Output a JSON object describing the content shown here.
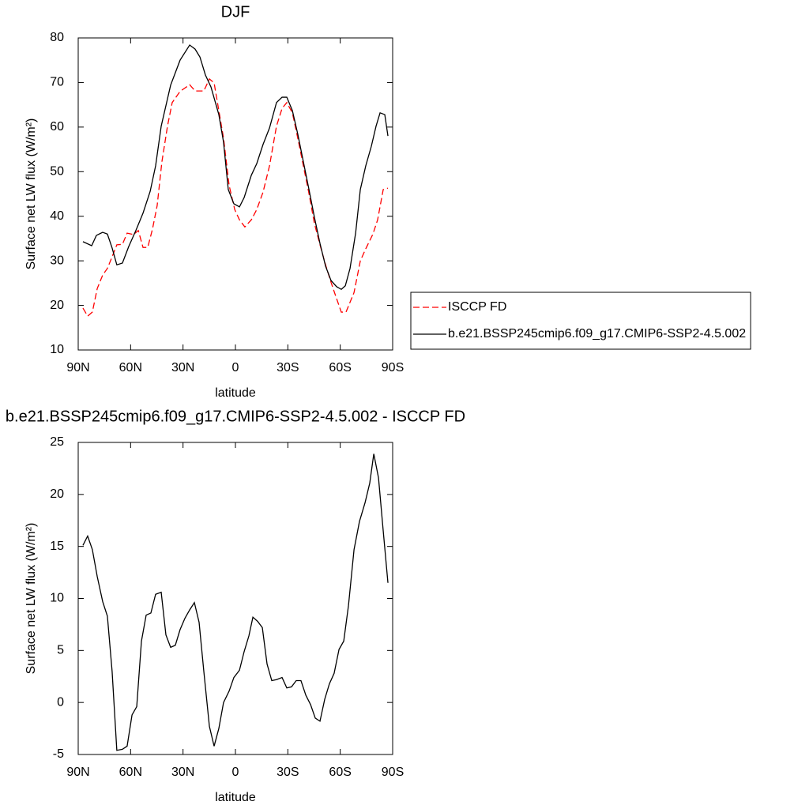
{
  "chart_data": [
    {
      "type": "line",
      "title": "DJF",
      "xlabel": "latitude",
      "ylabel": "Surface net LW flux (W/m²)",
      "xlim": [
        90,
        -90
      ],
      "ylim": [
        10,
        80
      ],
      "xticks": [
        {
          "value": 90,
          "label": "90N"
        },
        {
          "value": 60,
          "label": "60N"
        },
        {
          "value": 30,
          "label": "30N"
        },
        0,
        {
          "value": -30,
          "label": "30S"
        },
        {
          "value": -60,
          "label": "60S"
        },
        {
          "value": -90,
          "label": "90S"
        }
      ],
      "yticks": [
        10,
        20,
        30,
        40,
        50,
        60,
        70,
        80
      ],
      "legend": "right",
      "series": [
        {
          "name": "ISCCP FD",
          "color": "#ff0000",
          "style": "dashed",
          "x": [
            87.3,
            84.6,
            81.9,
            79.1,
            76,
            73.3,
            70.6,
            67.9,
            64.7,
            62,
            58.3,
            55.6,
            52.9,
            50.2,
            47.5,
            44.8,
            42.1,
            38.9,
            36.2,
            31.7,
            26.2,
            23.1,
            18.1,
            14.9,
            12.2,
            9.5,
            6.8,
            3.6,
            0.4,
            -2.3,
            -5.4,
            -9.1,
            -12.2,
            -15.8,
            -19.5,
            -23.5,
            -26.7,
            -29.4,
            -32.6,
            -35.7,
            -38.9,
            -42.1,
            -45.2,
            -48.4,
            -51.6,
            -54.7,
            -57.4,
            -60.6,
            -63.3,
            -67.9,
            -71.5,
            -74.6,
            -78.7,
            -81.4,
            -84.6,
            -87.3
          ],
          "values": [
            19.4,
            17.6,
            18.5,
            23.8,
            26.8,
            28.3,
            30.9,
            33.6,
            33.7,
            36.2,
            35.9,
            36.8,
            33,
            33,
            37.1,
            42.4,
            52.2,
            60.2,
            65.5,
            68,
            69.5,
            68.1,
            68.1,
            70.8,
            69.9,
            63.7,
            57.5,
            46.9,
            41.5,
            39.2,
            37.6,
            39.2,
            41.5,
            45.4,
            51.3,
            60.2,
            64.2,
            65.5,
            63.2,
            57.5,
            51.3,
            45.1,
            38.4,
            33.6,
            29.1,
            25.2,
            22.1,
            18.5,
            18.5,
            22.9,
            30,
            32.7,
            36,
            39.2,
            46,
            46.3
          ]
        },
        {
          "name": "b.e21.BSSP245cmip6.f09_g17.CMIP6-SSP2-4.5.002",
          "color": "#000000",
          "style": "solid",
          "x": [
            87.3,
            82.3,
            79.6,
            76,
            73.3,
            70.6,
            67.9,
            64.7,
            61.1,
            57,
            52.9,
            48.8,
            45.7,
            42.5,
            37.1,
            31.7,
            26.2,
            23.1,
            20.3,
            17.2,
            14,
            9.5,
            6.8,
            4.1,
            0.9,
            -2.3,
            -5,
            -9.1,
            -12.2,
            -15.8,
            -19.5,
            -23.5,
            -26.7,
            -29.4,
            -32.6,
            -35.7,
            -38.9,
            -42.1,
            -45.2,
            -48.4,
            -51.6,
            -54.7,
            -57.9,
            -60.6,
            -62.9,
            -65.6,
            -68.8,
            -71.5,
            -74.6,
            -77.8,
            -80.5,
            -82.8,
            -85.5,
            -87.3
          ],
          "values": [
            34.3,
            33.4,
            35.7,
            36.4,
            36,
            32.9,
            29.1,
            29.5,
            33.2,
            36.8,
            40.7,
            45.6,
            51.3,
            60.2,
            69.4,
            75,
            78.4,
            77.5,
            75.7,
            71.7,
            69,
            62.8,
            56.6,
            46,
            42.8,
            42.1,
            44.2,
            49.2,
            51.8,
            56.1,
            59.8,
            65.5,
            66.7,
            66.7,
            63.7,
            58.4,
            52.2,
            46,
            39.8,
            33.9,
            28.8,
            25.6,
            24.2,
            23.6,
            24.4,
            28.3,
            36.2,
            46,
            51.3,
            55.7,
            60.2,
            63.2,
            62.8,
            58
          ]
        }
      ]
    },
    {
      "type": "line",
      "title": "b.e21.BSSP245cmip6.f09_g17.CMIP6-SSP2-4.5.002 - ISCCP FD",
      "xlabel": "latitude",
      "ylabel": "Surface net LW flux (W/m²)",
      "xlim": [
        90,
        -90
      ],
      "ylim": [
        -5,
        25
      ],
      "xticks": [
        {
          "value": 90,
          "label": "90N"
        },
        {
          "value": 60,
          "label": "60N"
        },
        {
          "value": 30,
          "label": "30N"
        },
        0,
        {
          "value": -30,
          "label": "30S"
        },
        {
          "value": -60,
          "label": "60S"
        },
        {
          "value": -90,
          "label": "90S"
        }
      ],
      "yticks": [
        -5,
        0,
        5,
        10,
        15,
        20,
        25
      ],
      "color": "#000000",
      "x": [
        87.3,
        84.6,
        81.9,
        79.1,
        76,
        73.3,
        70.6,
        67.9,
        64.7,
        62,
        59.2,
        56.5,
        53.8,
        51.1,
        48.4,
        45.7,
        42.5,
        39.8,
        37.1,
        34.4,
        31.7,
        28.9,
        26.2,
        23.5,
        20.8,
        18.1,
        14.9,
        12.2,
        9.5,
        6.8,
        3.6,
        0.9,
        -2.3,
        -5,
        -7.7,
        -10,
        -12.7,
        -15.4,
        -18.1,
        -20.8,
        -23.5,
        -26.7,
        -29.4,
        -32.1,
        -34.8,
        -37.5,
        -40.3,
        -43,
        -45.7,
        -48.4,
        -51.1,
        -53.8,
        -56.5,
        -59.3,
        -62,
        -64.7,
        -67.9,
        -71,
        -74.2,
        -76.9,
        -79.2,
        -81.9,
        -84.6,
        -87.3
      ],
      "values": [
        15.1,
        16,
        14.7,
        12.1,
        9.7,
        8.3,
        3,
        -4.6,
        -4.5,
        -4.2,
        -1.2,
        -0.4,
        5.9,
        8.4,
        8.6,
        10.4,
        10.6,
        6.5,
        5.3,
        5.5,
        7,
        8.1,
        8.9,
        9.6,
        7.7,
        3,
        -2.3,
        -4.2,
        -2.5,
        0,
        1.1,
        2.4,
        3.1,
        4.9,
        6.4,
        8.2,
        7.8,
        7.2,
        3.7,
        2.1,
        2.2,
        2.4,
        1.4,
        1.5,
        2.1,
        2.1,
        0.7,
        -0.2,
        -1.5,
        -1.8,
        0.3,
        1.8,
        2.8,
        5.1,
        5.9,
        9.3,
        14.7,
        17.4,
        19.2,
        21.1,
        23.9,
        21.6,
        16.5,
        11.5
      ]
    }
  ]
}
